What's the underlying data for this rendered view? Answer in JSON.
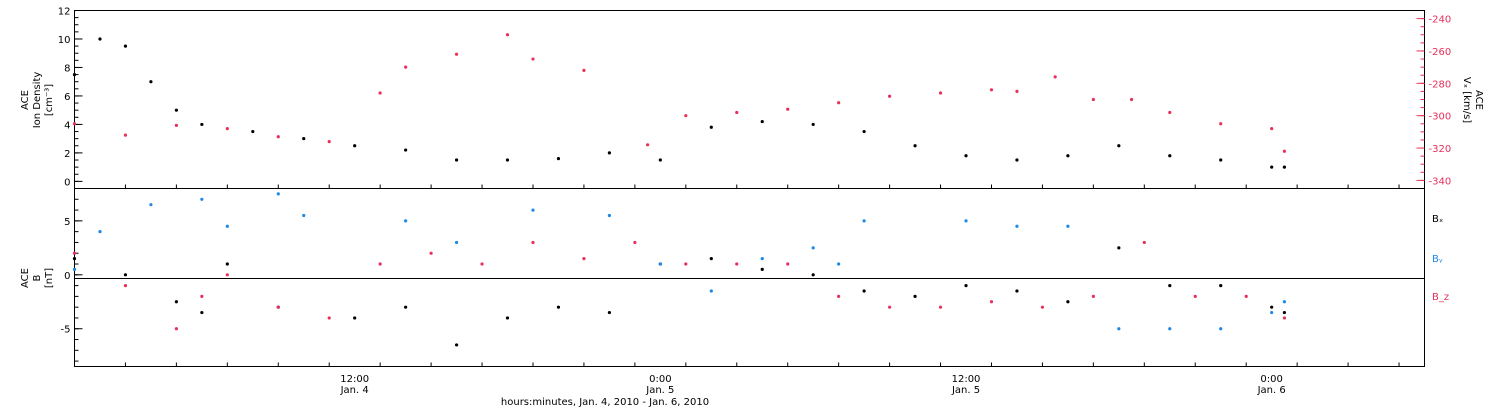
{
  "colors": {
    "black": "#000000",
    "red": "#e8305a",
    "blue": "#1e88e5"
  },
  "top_panel": {
    "left_label": [
      "ACE",
      "Ion Density",
      "[cm⁻³]"
    ],
    "right_label": [
      "ACE",
      "Vₓ [km/s]"
    ]
  },
  "bottom_panel": {
    "left_label": [
      "ACE",
      "B",
      "[nT]"
    ],
    "legend": [
      "Bₓ",
      "Bᵧ",
      "B_z"
    ]
  },
  "x_axis": {
    "title": "hours:minutes, Jan.  4, 2010 - Jan.  6, 2010",
    "ticks": [
      {
        "time": "12:00",
        "date": "Jan. 4"
      },
      {
        "time": "0:00",
        "date": "Jan. 5"
      },
      {
        "time": "12:00",
        "date": "Jan. 5"
      },
      {
        "time": "0:00",
        "date": "Jan. 6"
      }
    ]
  },
  "chart_data": [
    {
      "type": "scatter",
      "title": "",
      "xlabel": "hours:minutes, Jan.  4, 2010 - Jan.  6, 2010",
      "ylabel": "ACE Ion Density [cm^-3]",
      "y2label": "ACE Vx [km/s]",
      "xlim": [
        "2010-01-04 01:00",
        "2010-01-06 06:00"
      ],
      "ylim": [
        -0.5,
        12
      ],
      "y2lim": [
        -345,
        -235
      ],
      "yticks": [
        0,
        2,
        4,
        6,
        8,
        10,
        12
      ],
      "y2ticks": [
        -240,
        -260,
        -280,
        -300,
        -320,
        -340
      ],
      "series": [
        {
          "name": "Ion Density",
          "color": "#000000",
          "axis": "left",
          "x": [
            "2010-01-04 01:00",
            "2010-01-04 02:00",
            "2010-01-04 03:00",
            "2010-01-04 04:00",
            "2010-01-04 05:00",
            "2010-01-04 06:00",
            "2010-01-04 08:00",
            "2010-01-04 10:00",
            "2010-01-04 12:00",
            "2010-01-04 14:00",
            "2010-01-04 16:00",
            "2010-01-04 18:00",
            "2010-01-04 20:00",
            "2010-01-04 22:00",
            "2010-01-05 00:00",
            "2010-01-05 02:00",
            "2010-01-05 04:00",
            "2010-01-05 06:00",
            "2010-01-05 08:00",
            "2010-01-05 10:00",
            "2010-01-05 12:00",
            "2010-01-05 14:00",
            "2010-01-05 16:00",
            "2010-01-05 18:00",
            "2010-01-05 20:00",
            "2010-01-05 22:00",
            "2010-01-06 00:00",
            "2010-01-06 00:30"
          ],
          "y": [
            7.5,
            10,
            9.5,
            7,
            5,
            4,
            3.5,
            3,
            2.5,
            2.2,
            1.5,
            1.5,
            1.6,
            2,
            1.5,
            3.8,
            4.2,
            4,
            3.5,
            2.5,
            1.8,
            1.5,
            1.8,
            2.5,
            1.8,
            1.5,
            1,
            1
          ]
        },
        {
          "name": "Vx",
          "color": "#e8305a",
          "axis": "right",
          "x": [
            "2010-01-04 01:00",
            "2010-01-04 03:00",
            "2010-01-04 05:00",
            "2010-01-04 07:00",
            "2010-01-04 09:00",
            "2010-01-04 11:00",
            "2010-01-04 13:00",
            "2010-01-04 14:00",
            "2010-01-04 16:00",
            "2010-01-04 18:00",
            "2010-01-04 19:00",
            "2010-01-04 21:00",
            "2010-01-04 23:30",
            "2010-01-05 01:00",
            "2010-01-05 03:00",
            "2010-01-05 05:00",
            "2010-01-05 07:00",
            "2010-01-05 09:00",
            "2010-01-05 11:00",
            "2010-01-05 13:00",
            "2010-01-05 14:00",
            "2010-01-05 15:30",
            "2010-01-05 17:00",
            "2010-01-05 18:30",
            "2010-01-05 20:00",
            "2010-01-05 22:00",
            "2010-01-06 00:00",
            "2010-01-06 00:30"
          ],
          "y": [
            -305,
            -312,
            -306,
            -308,
            -313,
            -316,
            -286,
            -270,
            -262,
            -250,
            -265,
            -272,
            -318,
            -300,
            -298,
            -296,
            -292,
            -288,
            -286,
            -284,
            -285,
            -276,
            -290,
            -290,
            -298,
            -305,
            -308,
            -322
          ]
        }
      ]
    },
    {
      "type": "scatter",
      "title": "",
      "xlabel": "hours:minutes, Jan.  4, 2010 - Jan.  6, 2010",
      "ylabel": "ACE B [nT]",
      "ylim": [
        -8.5,
        8
      ],
      "yticks": [
        -5,
        0,
        5
      ],
      "legend_position": "right",
      "series": [
        {
          "name": "Bx",
          "color": "#000000",
          "x": [
            "2010-01-04 01:00",
            "2010-01-04 03:00",
            "2010-01-04 05:00",
            "2010-01-04 06:00",
            "2010-01-04 07:00",
            "2010-01-04 09:00",
            "2010-01-04 12:00",
            "2010-01-04 14:00",
            "2010-01-04 16:00",
            "2010-01-04 18:00",
            "2010-01-04 20:00",
            "2010-01-04 22:00",
            "2010-01-05 00:00",
            "2010-01-05 02:00",
            "2010-01-05 04:00",
            "2010-01-05 06:00",
            "2010-01-05 08:00",
            "2010-01-05 10:00",
            "2010-01-05 12:00",
            "2010-01-05 14:00",
            "2010-01-05 16:00",
            "2010-01-05 18:00",
            "2010-01-05 20:00",
            "2010-01-05 22:00",
            "2010-01-06 00:00",
            "2010-01-06 00:30"
          ],
          "y": [
            1.5,
            0,
            -2.5,
            -3.5,
            1,
            -3,
            -4,
            -3,
            -6.5,
            -4,
            -3,
            -3.5,
            1,
            1.5,
            0.5,
            0,
            -1.5,
            -2,
            -1,
            -1.5,
            -2.5,
            2.5,
            -1,
            -1,
            -3,
            -3.5
          ]
        },
        {
          "name": "By",
          "color": "#1e88e5",
          "x": [
            "2010-01-04 01:00",
            "2010-01-04 02:00",
            "2010-01-04 04:00",
            "2010-01-04 06:00",
            "2010-01-04 07:00",
            "2010-01-04 09:00",
            "2010-01-04 10:00",
            "2010-01-04 14:00",
            "2010-01-04 16:00",
            "2010-01-04 19:00",
            "2010-01-04 22:00",
            "2010-01-05 00:00",
            "2010-01-05 02:00",
            "2010-01-05 04:00",
            "2010-01-05 06:00",
            "2010-01-05 07:00",
            "2010-01-05 08:00",
            "2010-01-05 12:00",
            "2010-01-05 14:00",
            "2010-01-05 16:00",
            "2010-01-05 18:00",
            "2010-01-05 20:00",
            "2010-01-05 22:00",
            "2010-01-06 00:00",
            "2010-01-06 00:30"
          ],
          "y": [
            0.5,
            4,
            6.5,
            7,
            4.5,
            7.5,
            5.5,
            5,
            3,
            6,
            5.5,
            1,
            -1.5,
            1.5,
            2.5,
            1,
            5,
            5,
            4.5,
            4.5,
            -5,
            -5,
            -5,
            -3.5,
            -2.5
          ]
        },
        {
          "name": "Bz",
          "color": "#e8305a",
          "x": [
            "2010-01-04 01:00",
            "2010-01-04 03:00",
            "2010-01-04 05:00",
            "2010-01-04 06:00",
            "2010-01-04 07:00",
            "2010-01-04 09:00",
            "2010-01-04 11:00",
            "2010-01-04 13:00",
            "2010-01-04 15:00",
            "2010-01-04 17:00",
            "2010-01-04 19:00",
            "2010-01-04 21:00",
            "2010-01-04 23:00",
            "2010-01-05 01:00",
            "2010-01-05 03:00",
            "2010-01-05 05:00",
            "2010-01-05 07:00",
            "2010-01-05 09:00",
            "2010-01-05 11:00",
            "2010-01-05 13:00",
            "2010-01-05 15:00",
            "2010-01-05 17:00",
            "2010-01-05 19:00",
            "2010-01-05 21:00",
            "2010-01-05 23:00",
            "2010-01-06 00:30"
          ],
          "y": [
            2,
            -1,
            -5,
            -2,
            0,
            -3,
            -4,
            1,
            2,
            1,
            3,
            1.5,
            3,
            1,
            1,
            1,
            -2,
            -3,
            -3,
            -2.5,
            -3,
            -2,
            3,
            -2,
            -2,
            -4
          ]
        }
      ]
    }
  ]
}
